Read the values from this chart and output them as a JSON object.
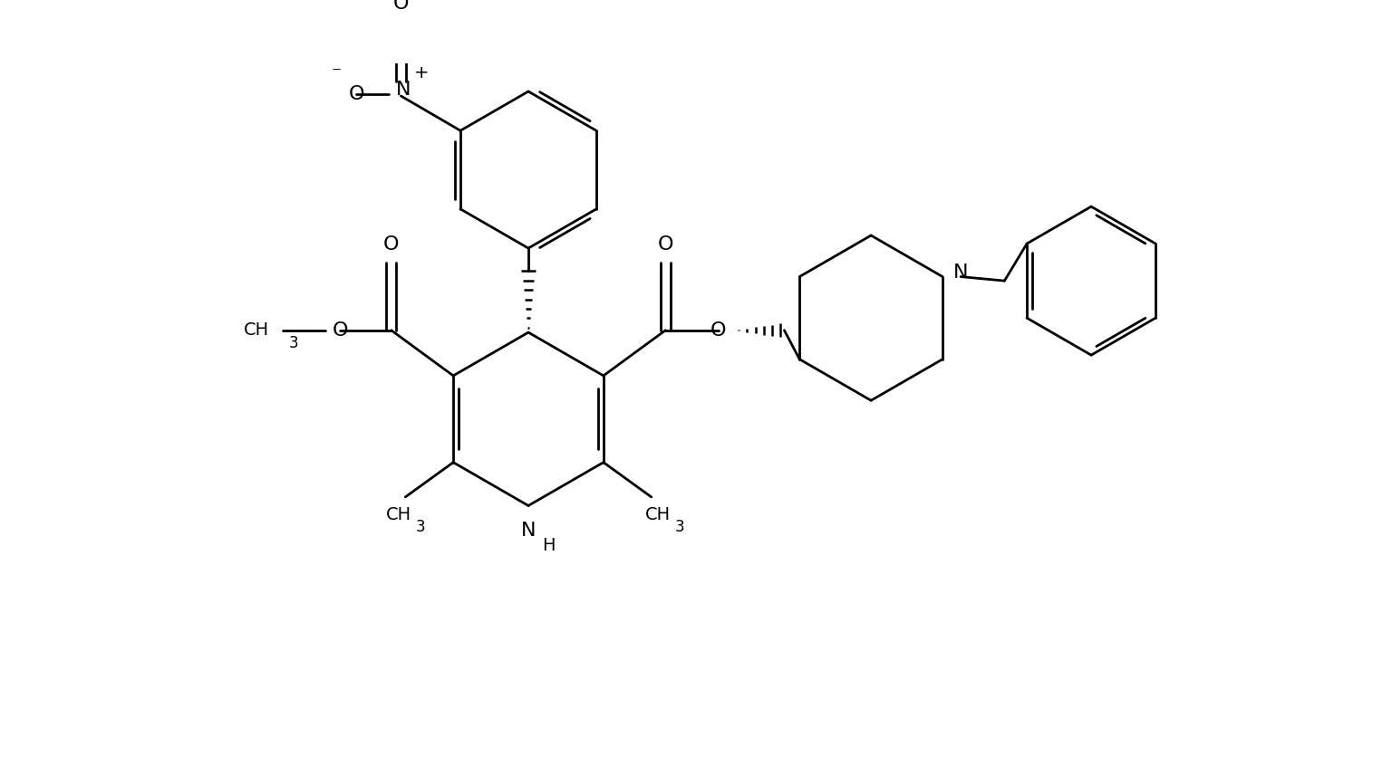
{
  "bg_color": "#ffffff",
  "line_color": "#000000",
  "lw": 2.0,
  "fs": 15,
  "figsize": [
    15.36,
    8.36
  ],
  "dpi": 100,
  "xlim": [
    0,
    15.36
  ],
  "ylim": [
    0,
    8.36
  ]
}
